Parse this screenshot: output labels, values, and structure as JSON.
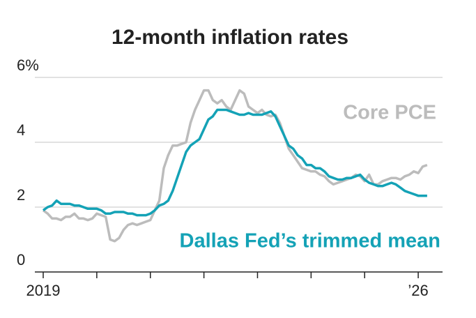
{
  "chart_data": {
    "type": "line",
    "title": "12-month inflation rates",
    "x": [
      2019.0,
      2019.083,
      2019.167,
      2019.25,
      2019.333,
      2019.417,
      2019.5,
      2019.583,
      2019.667,
      2019.75,
      2019.833,
      2019.917,
      2020.0,
      2020.083,
      2020.167,
      2020.25,
      2020.333,
      2020.417,
      2020.5,
      2020.583,
      2020.667,
      2020.75,
      2020.833,
      2020.917,
      2021.0,
      2021.083,
      2021.167,
      2021.25,
      2021.333,
      2021.417,
      2021.5,
      2021.583,
      2021.667,
      2021.75,
      2021.833,
      2021.917,
      2022.0,
      2022.083,
      2022.167,
      2022.25,
      2022.333,
      2022.417,
      2022.5,
      2022.583,
      2022.667,
      2022.75,
      2022.833,
      2022.917,
      2023.0,
      2023.083,
      2023.167,
      2023.25,
      2023.333,
      2023.417,
      2023.5,
      2023.583,
      2023.667,
      2023.75,
      2023.833,
      2023.917,
      2024.0,
      2024.083,
      2024.167,
      2024.25,
      2024.333,
      2024.417,
      2024.5,
      2024.583,
      2024.667,
      2024.75,
      2024.833,
      2024.917,
      2025.0,
      2025.083,
      2025.167,
      2025.25,
      2025.333,
      2025.417,
      2025.5,
      2025.583,
      2025.667,
      2025.75,
      2025.833,
      2025.917,
      2026.0,
      2026.083,
      2026.167
    ],
    "series": [
      {
        "name": "Core PCE",
        "color": "#bcbcbc",
        "values": [
          1.9,
          1.8,
          1.65,
          1.65,
          1.6,
          1.7,
          1.7,
          1.8,
          1.65,
          1.65,
          1.6,
          1.65,
          1.8,
          1.75,
          1.7,
          1.0,
          0.95,
          1.05,
          1.3,
          1.45,
          1.5,
          1.45,
          1.5,
          1.55,
          1.6,
          1.9,
          2.2,
          3.2,
          3.6,
          3.9,
          3.9,
          3.95,
          4.0,
          4.6,
          5.0,
          5.3,
          5.6,
          5.6,
          5.3,
          5.2,
          5.3,
          5.1,
          5.0,
          5.3,
          5.6,
          5.5,
          5.1,
          5.0,
          4.9,
          5.0,
          4.85,
          4.8,
          4.85,
          4.6,
          4.2,
          3.8,
          3.6,
          3.4,
          3.2,
          3.15,
          3.1,
          3.1,
          3.0,
          2.95,
          2.8,
          2.7,
          2.75,
          2.8,
          2.85,
          2.9,
          3.0,
          2.95,
          2.8,
          3.0,
          2.7,
          2.7,
          2.8,
          2.85,
          2.9,
          2.9,
          2.85,
          2.95,
          3.0,
          3.1,
          3.05,
          3.25,
          3.3
        ]
      },
      {
        "name": "Dallas Fed’s trimmed mean",
        "color": "#14a2b6",
        "values": [
          1.9,
          2.0,
          2.05,
          2.2,
          2.1,
          2.1,
          2.1,
          2.05,
          2.05,
          2.0,
          1.95,
          1.95,
          1.95,
          1.9,
          1.8,
          1.8,
          1.85,
          1.85,
          1.85,
          1.8,
          1.8,
          1.75,
          1.75,
          1.75,
          1.8,
          1.9,
          2.05,
          2.1,
          2.2,
          2.5,
          2.9,
          3.3,
          3.7,
          3.9,
          4.0,
          4.1,
          4.4,
          4.7,
          4.8,
          5.0,
          5.0,
          5.0,
          4.95,
          4.9,
          4.85,
          4.85,
          4.9,
          4.85,
          4.85,
          4.85,
          4.9,
          4.95,
          4.8,
          4.5,
          4.2,
          3.9,
          3.8,
          3.6,
          3.5,
          3.3,
          3.3,
          3.2,
          3.2,
          3.1,
          2.95,
          2.9,
          2.85,
          2.85,
          2.9,
          2.9,
          2.95,
          3.0,
          2.85,
          2.75,
          2.7,
          2.65,
          2.65,
          2.7,
          2.75,
          2.7,
          2.6,
          2.5,
          2.45,
          2.4,
          2.35,
          2.35,
          2.35
        ]
      }
    ],
    "xlim": [
      2019,
      2026.35
    ],
    "xticks": [
      2019,
      2020,
      2021,
      2022,
      2023,
      2024,
      2025,
      2026
    ],
    "xtick_labels": [
      2019,
      {
        "value": 2026,
        "label": "’26"
      }
    ],
    "ylim": [
      0,
      6
    ],
    "yticks": [
      0,
      2,
      4,
      {
        "value": 6,
        "label": "6%"
      }
    ],
    "grid": true
  }
}
